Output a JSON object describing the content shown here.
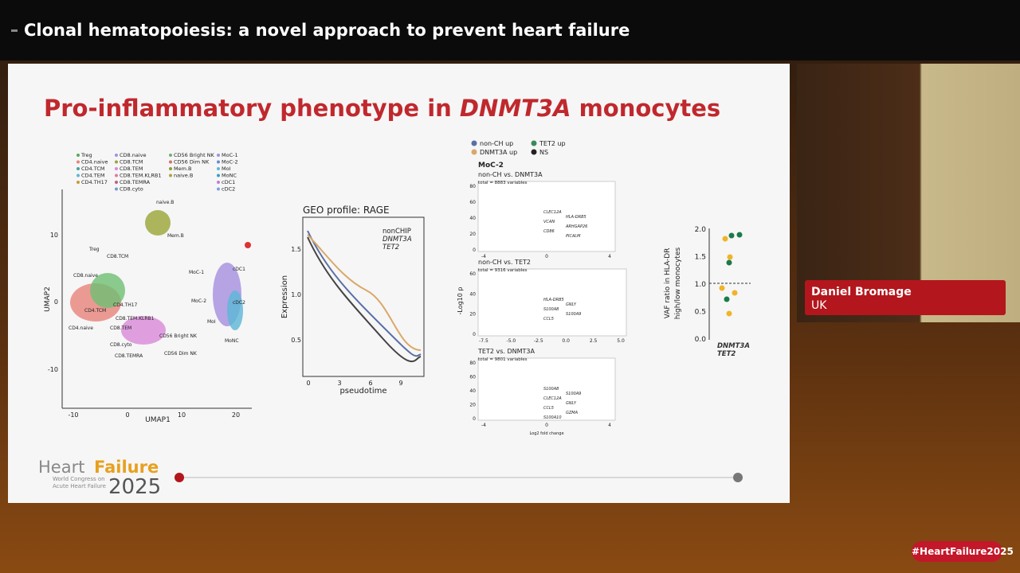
{
  "header": {
    "title": "Clonal hematopoiesis: a novel approach to prevent heart failure"
  },
  "slide": {
    "title": {
      "prefix": "Pro-inflammatory phenotype in ",
      "gene": "DNMT3A",
      "suffix": " monocytes"
    },
    "umap": {
      "legend": [
        "Treg",
        "CD4.naive",
        "CD4.TCM",
        "CD4.TEM",
        "CD4.TH17",
        "CD8.naive",
        "CD8.TCM",
        "CD8.TEM",
        "CD8.TEM.KLRB1",
        "CD8.TEMRA",
        "CD8.cyto",
        "CD56 Bright NK",
        "CD56 Dim NK",
        "Mem.B",
        "naive.B",
        "MoC-1",
        "MoC-2",
        "MoI",
        "MoNC",
        "cDC1",
        "cDC2"
      ],
      "x_label": "UMAP1",
      "y_label": "UMAP2",
      "x_ticks": [
        "-10",
        "0",
        "10",
        "20"
      ],
      "y_ticks": [
        "10",
        "0",
        "-10"
      ],
      "clusters": [
        "naive.B",
        "Mem.B",
        "Treg",
        "CD8.naive",
        "CD8.TCM",
        "CD4.TH17",
        "CD4.TCM",
        "CD8.TEM.KLRB1",
        "CD4.naive",
        "CD8.TEM",
        "CD56 Bright NK",
        "CD8.cyto",
        "CD8.TEMRA",
        "CD56 Dim NK",
        "MoC-1",
        "cDC1",
        "MoC-2",
        "cDC2",
        "MoI",
        "MoNC"
      ]
    },
    "geo": {
      "title": "GEO profile: RAGE",
      "legend": [
        "nonCHIP",
        "DNMT3A",
        "TET2"
      ],
      "x_label": "pseudotime",
      "y_label": "Expression",
      "x_ticks": [
        "0",
        "3",
        "6",
        "9"
      ],
      "y_ticks": [
        "1.5",
        "1.0",
        "0.5"
      ]
    },
    "volcano": {
      "legend": [
        "non-CH up",
        "TET2 up",
        "DNMT3A up",
        "NS"
      ],
      "cell": "MoC-2",
      "y_label": "-Log10 p",
      "x_label": "Log2 fold change",
      "panels": [
        {
          "title": "non-CH vs. DNMT3A",
          "note": "total = 8883 variables",
          "y_ticks": [
            "80",
            "60",
            "40",
            "20",
            "0"
          ],
          "x_ticks": [
            "-4",
            "0",
            "4"
          ],
          "genes": [
            "CLEC12A",
            "HLA-DRB5",
            "VCAN",
            "ARHGAP26",
            "CD86",
            "PICALM"
          ]
        },
        {
          "title": "non-CH vs. TET2",
          "note": "total = 9316 variables",
          "y_ticks": [
            "60",
            "40",
            "20",
            "0"
          ],
          "x_ticks": [
            "-7.5",
            "-5.0",
            "-2.5",
            "0.0",
            "2.5",
            "5.0"
          ],
          "genes": [
            "HLA-DRB5",
            "GNLY",
            "S100A8",
            "S100A9",
            "CCL5"
          ]
        },
        {
          "title": "TET2 vs. DNMT3A",
          "note": "total = 9801 variables",
          "y_ticks": [
            "80",
            "60",
            "40",
            "20",
            "0"
          ],
          "x_ticks": [
            "-4",
            "0",
            "4"
          ],
          "genes": [
            "S100A8",
            "S100A9",
            "CLEC12A",
            "GNLY",
            "CCL5",
            "GZMA",
            "S100A10"
          ]
        }
      ]
    },
    "vaf": {
      "y_label": "VAF ratio in HLA-DR",
      "y_label2": "high/low monocytes",
      "y_ticks": [
        "2.0",
        "1.5",
        "1.0",
        "0.5",
        "0.0"
      ],
      "legend": [
        "DNMT3A",
        "TET2"
      ]
    },
    "logo": {
      "word1": "Heart",
      "word2": "Failure",
      "sub1": "World Congress on",
      "sub2": "Acute Heart Failure",
      "year": "2025"
    }
  },
  "speaker": {
    "name": "Daniel Bromage",
    "country": "UK"
  },
  "hashtag": "#HeartFailure2025"
}
